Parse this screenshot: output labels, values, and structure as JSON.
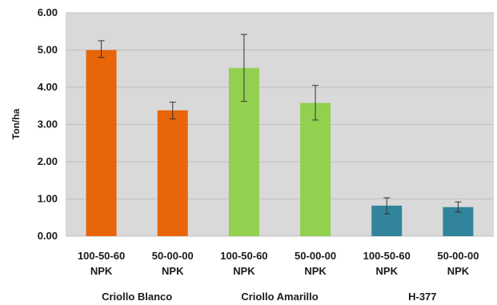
{
  "chart_data": {
    "type": "bar",
    "ylabel": "Ton/ha",
    "ylim": [
      0,
      6
    ],
    "yticks": [
      "0.00",
      "1.00",
      "2.00",
      "3.00",
      "4.00",
      "5.00",
      "6.00"
    ],
    "grid": true,
    "groups": [
      {
        "name": "Criollo Blanco",
        "color": "#e8650a",
        "bars": [
          {
            "label_line1": "100-50-60",
            "label_line2": "NPK",
            "value": 5.0,
            "err_low": 4.8,
            "err_high": 5.25
          },
          {
            "label_line1": "50-00-00",
            "label_line2": "NPK",
            "value": 3.38,
            "err_low": 3.15,
            "err_high": 3.6
          }
        ]
      },
      {
        "name": "Criollo Amarillo",
        "color": "#92d050",
        "bars": [
          {
            "label_line1": "100-50-60",
            "label_line2": "NPK",
            "value": 4.52,
            "err_low": 3.62,
            "err_high": 5.42
          },
          {
            "label_line1": "50-00-00",
            "label_line2": "NPK",
            "value": 3.58,
            "err_low": 3.12,
            "err_high": 4.05
          }
        ]
      },
      {
        "name": "H-377",
        "color": "#31849b",
        "bars": [
          {
            "label_line1": "100-50-60",
            "label_line2": "NPK",
            "value": 0.82,
            "err_low": 0.6,
            "err_high": 1.03
          },
          {
            "label_line1": "50-00-00",
            "label_line2": "NPK",
            "value": 0.78,
            "err_low": 0.65,
            "err_high": 0.92
          }
        ]
      }
    ]
  }
}
